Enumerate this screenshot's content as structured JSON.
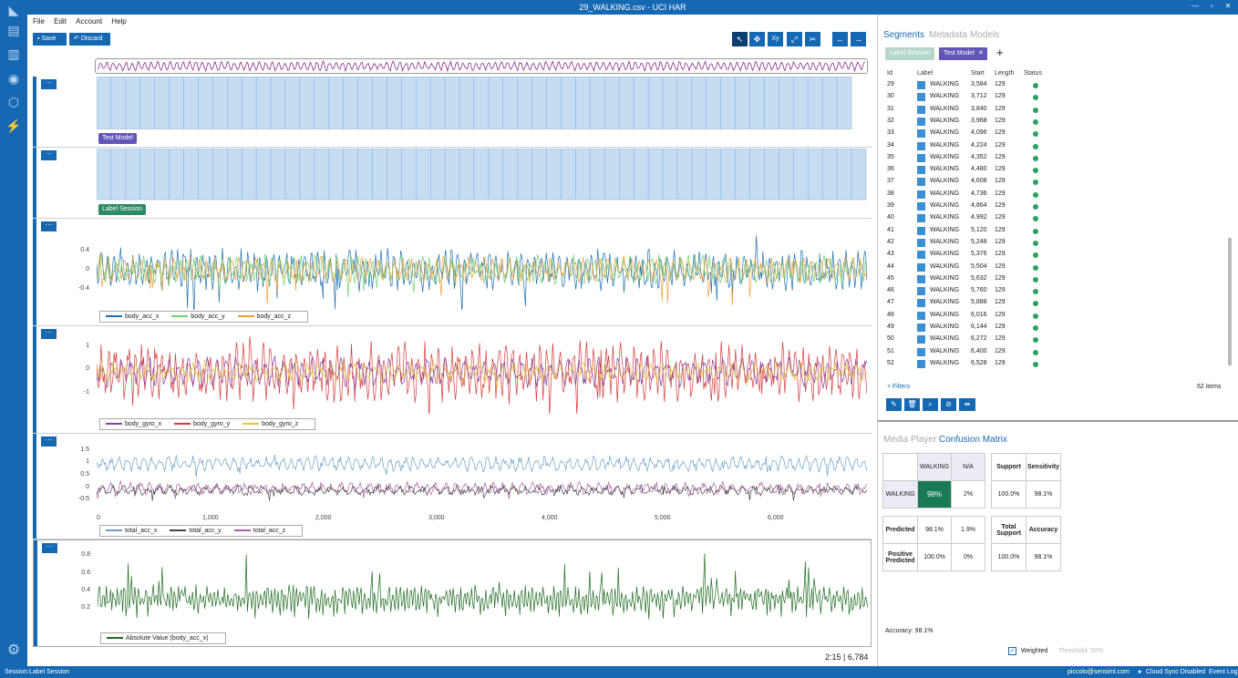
{
  "window": {
    "title": "29_WALKING.csv - UCI HAR",
    "controls": [
      "—",
      "▫",
      "✕"
    ]
  },
  "rail": [
    {
      "name": "file-icon",
      "glyph": "▤"
    },
    {
      "name": "chart-icon",
      "glyph": "▥"
    },
    {
      "name": "signal-icon",
      "glyph": "◉"
    },
    {
      "name": "cube-icon",
      "glyph": "⬡"
    },
    {
      "name": "bolt-icon",
      "glyph": "⚡"
    },
    {
      "name": "gear-icon",
      "glyph": "⚙"
    }
  ],
  "menu": [
    "File",
    "Edit",
    "Account",
    "Help"
  ],
  "toolbar": {
    "save_label": "Save",
    "discard_label": "Discard"
  },
  "tools": [
    "pointer-icon",
    "move-icon",
    "xy-icon",
    "fit-icon",
    "cut-icon",
    "arrow-left-icon",
    "arrow-right-icon"
  ],
  "tracks": {
    "more_label": "···",
    "test_model_tag": "Test Model",
    "label_session_tag": "Label Session",
    "acc": {
      "yticks": [
        "0.4",
        "0",
        "-0.4"
      ],
      "legend": [
        {
          "label": "body_acc_x",
          "color": "#1f6fb4"
        },
        {
          "label": "body_acc_y",
          "color": "#6dd36d"
        },
        {
          "label": "body_acc_z",
          "color": "#f39c35"
        }
      ]
    },
    "gyro": {
      "yticks": [
        "1",
        "0",
        "-1"
      ],
      "legend": [
        {
          "label": "body_gyro_x",
          "color": "#7f3fa6"
        },
        {
          "label": "body_gyro_y",
          "color": "#d83b3b"
        },
        {
          "label": "body_gyro_z",
          "color": "#e6c53a"
        }
      ]
    },
    "total": {
      "yticks": [
        "1.5",
        "1",
        "0.5",
        "0",
        "-0.5"
      ],
      "xticks": [
        "0",
        "1,000",
        "2,000",
        "3,000",
        "4,000",
        "5,000",
        "6,000"
      ],
      "legend": [
        {
          "label": "total_acc_x",
          "color": "#6a9fc4"
        },
        {
          "label": "total_acc_y",
          "color": "#444444"
        },
        {
          "label": "total_acc_z",
          "color": "#b05ba6"
        }
      ]
    },
    "abs": {
      "yticks": [
        "0.8",
        "0.6",
        "0.4",
        "0.2"
      ],
      "legend": [
        {
          "label": "Absolute Value (body_acc_x)",
          "color": "#1e6b21"
        }
      ]
    }
  },
  "position": "2:15  |  6,784",
  "status": {
    "session_label": "Session:",
    "session_value": "Label Session",
    "user": "piccolo@sensiml.com",
    "cloud": "Cloud Sync Disabled",
    "event_log": "Event Log"
  },
  "panel": {
    "tabs": [
      "Segments",
      "Metadata",
      "Models"
    ],
    "chips": {
      "label_session": "Label Session",
      "test_model": "Test Model",
      "add": "+"
    },
    "columns": [
      "Id",
      "Label",
      "Start",
      "Length",
      "Status"
    ],
    "rows": [
      {
        "id": "29",
        "label": "WALKING",
        "start": "3,584",
        "length": "129"
      },
      {
        "id": "30",
        "label": "WALKING",
        "start": "3,712",
        "length": "129"
      },
      {
        "id": "31",
        "label": "WALKING",
        "start": "3,840",
        "length": "129"
      },
      {
        "id": "32",
        "label": "WALKING",
        "start": "3,968",
        "length": "129"
      },
      {
        "id": "33",
        "label": "WALKING",
        "start": "4,096",
        "length": "129"
      },
      {
        "id": "34",
        "label": "WALKING",
        "start": "4,224",
        "length": "129"
      },
      {
        "id": "35",
        "label": "WALKING",
        "start": "4,352",
        "length": "129"
      },
      {
        "id": "36",
        "label": "WALKING",
        "start": "4,480",
        "length": "129"
      },
      {
        "id": "37",
        "label": "WALKING",
        "start": "4,608",
        "length": "129"
      },
      {
        "id": "38",
        "label": "WALKING",
        "start": "4,736",
        "length": "129"
      },
      {
        "id": "39",
        "label": "WALKING",
        "start": "4,864",
        "length": "129"
      },
      {
        "id": "40",
        "label": "WALKING",
        "start": "4,992",
        "length": "129"
      },
      {
        "id": "41",
        "label": "WALKING",
        "start": "5,120",
        "length": "129"
      },
      {
        "id": "42",
        "label": "WALKING",
        "start": "5,248",
        "length": "129"
      },
      {
        "id": "43",
        "label": "WALKING",
        "start": "5,376",
        "length": "129"
      },
      {
        "id": "44",
        "label": "WALKING",
        "start": "5,504",
        "length": "129"
      },
      {
        "id": "45",
        "label": "WALKING",
        "start": "5,632",
        "length": "129"
      },
      {
        "id": "46",
        "label": "WALKING",
        "start": "5,760",
        "length": "129"
      },
      {
        "id": "47",
        "label": "WALKING",
        "start": "5,888",
        "length": "129"
      },
      {
        "id": "48",
        "label": "WALKING",
        "start": "6,016",
        "length": "129"
      },
      {
        "id": "49",
        "label": "WALKING",
        "start": "6,144",
        "length": "129"
      },
      {
        "id": "50",
        "label": "WALKING",
        "start": "6,272",
        "length": "129"
      },
      {
        "id": "51",
        "label": "WALKING",
        "start": "6,400",
        "length": "129"
      },
      {
        "id": "52",
        "label": "WALKING",
        "start": "6,528",
        "length": "129"
      }
    ],
    "filters": "+ Filters",
    "items": "52 items",
    "bottom_tabs": [
      "Media Player",
      "Confusion Matrix"
    ],
    "matrix": {
      "col_walking": "WALKING",
      "col_na": "N/A",
      "row_walking": "WALKING",
      "val_walking": "98%",
      "val_na": "2%",
      "support": "Support",
      "sensitivity": "Sensitivity",
      "support_val": "100.0%",
      "sensitivity_val": "98.1%",
      "predicted": "Predicted",
      "pred_1": "98.1%",
      "pred_2": "1.9%",
      "positive_predicted": "Positive Predicted",
      "pp_1": "100.0%",
      "pp_2": "0%",
      "total_support": "Total Support",
      "accuracy": "Accuracy",
      "total_support_val": "100.0%",
      "accuracy_val": "98.1%"
    },
    "accuracy_line": "Accuracy: 98.1%",
    "weighted": "Weighted",
    "threshold": "Threshold: 50%"
  }
}
